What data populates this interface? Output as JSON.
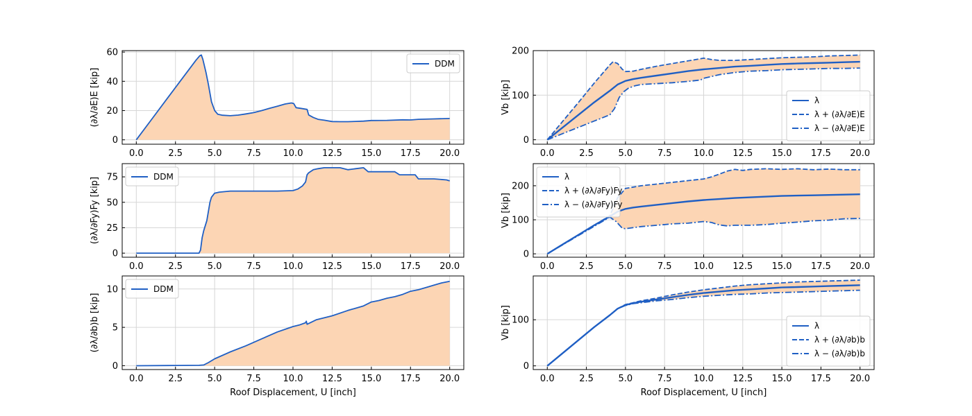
{
  "chart_data": [
    {
      "type": "area",
      "ylabel": "(∂λ/∂E)E [kip]",
      "xlabel": "",
      "xlim": [
        -0.9,
        20.9
      ],
      "ylim": [
        -3,
        61
      ],
      "xticks": [
        0.0,
        2.5,
        5.0,
        7.5,
        10.0,
        12.5,
        15.0,
        17.5,
        20.0
      ],
      "xtick_labels": [
        "0.0",
        "2.5",
        "5.0",
        "7.5",
        "10.0",
        "12.5",
        "15.0",
        "17.5",
        "20.0"
      ],
      "yticks": [
        0,
        20,
        40,
        60
      ],
      "ytick_labels": [
        "0",
        "20",
        "40",
        "60"
      ],
      "grid": true,
      "legend": {
        "position": "top-right",
        "entries": [
          "DDM"
        ]
      },
      "series": [
        {
          "name": "DDM",
          "x": [
            0,
            1,
            2,
            3,
            3.8,
            4.05,
            4.15,
            4.25,
            4.45,
            4.6,
            4.8,
            5.0,
            5.2,
            5.5,
            6.0,
            6.5,
            7.0,
            7.5,
            8.0,
            8.5,
            9.0,
            9.5,
            9.9,
            10.05,
            10.2,
            10.5,
            10.9,
            11.0,
            11.3,
            11.6,
            12.0,
            12.5,
            13.0,
            13.5,
            14.0,
            14.5,
            15.0,
            16.0,
            17.0,
            17.5,
            18.0,
            19.0,
            20.0
          ],
          "y": [
            0,
            14.3,
            28.6,
            42.9,
            54.3,
            57.5,
            58.0,
            55.0,
            46.0,
            38.0,
            26.0,
            20.0,
            17.5,
            16.8,
            16.5,
            16.9,
            17.7,
            18.6,
            20.0,
            21.5,
            23.0,
            24.5,
            25.2,
            24.8,
            22.0,
            21.5,
            20.8,
            17.0,
            15.3,
            14.0,
            13.4,
            12.5,
            12.4,
            12.4,
            12.6,
            12.8,
            13.2,
            13.3,
            13.7,
            13.6,
            14.0,
            14.3,
            14.6
          ]
        }
      ]
    },
    {
      "type": "area",
      "ylabel": "Vb [kip]",
      "xlabel": "",
      "xlim": [
        -0.9,
        20.9
      ],
      "ylim": [
        -10,
        200
      ],
      "xticks": [
        0.0,
        2.5,
        5.0,
        7.5,
        10.0,
        12.5,
        15.0,
        17.5,
        20.0
      ],
      "xtick_labels": [
        "0.0",
        "2.5",
        "5.0",
        "7.5",
        "10.0",
        "12.5",
        "15.0",
        "17.5",
        "20.0"
      ],
      "yticks": [
        0,
        100,
        200
      ],
      "ytick_labels": [
        "0",
        "100",
        "200"
      ],
      "grid": true,
      "legend": {
        "position": "bottom-right",
        "entries": [
          "λ",
          "λ + (∂λ/∂E)E",
          "λ − (∂λ/∂E)E"
        ]
      },
      "series": [
        {
          "name": "λ",
          "style": "solid",
          "x": [
            0,
            1,
            2,
            3,
            4,
            4.5,
            5.0,
            5.5,
            6,
            7,
            8,
            9,
            10,
            11,
            12,
            13,
            14,
            15,
            16,
            17,
            18,
            19,
            20
          ],
          "y": [
            0,
            28,
            56,
            84,
            110,
            124,
            132,
            136,
            139,
            144,
            149,
            154,
            158,
            161,
            164,
            166,
            168,
            170,
            171,
            172,
            173,
            174,
            175
          ]
        },
        {
          "name": "λ + (∂λ/∂E)E",
          "style": "dashed",
          "x": [
            0,
            1,
            2,
            3,
            4,
            4.2,
            4.5,
            4.8,
            5.0,
            5.5,
            6,
            7,
            8,
            9,
            9.5,
            10,
            10.5,
            11,
            12,
            13,
            14,
            15,
            16,
            17,
            18,
            19,
            20
          ],
          "y": [
            0,
            42,
            84,
            127,
            168,
            175,
            171,
            158,
            153,
            154,
            158,
            165,
            171,
            177,
            180,
            183,
            180,
            178,
            178,
            180,
            182,
            184,
            185,
            186,
            188,
            189,
            190
          ]
        },
        {
          "name": "λ − (∂λ/∂E)E",
          "style": "dashdot",
          "x": [
            0,
            1,
            2,
            3,
            4,
            4.3,
            4.6,
            4.9,
            5.2,
            5.6,
            6,
            7,
            8,
            9,
            9.8,
            10,
            10.5,
            11,
            12,
            13,
            14,
            15,
            16,
            17,
            18,
            19,
            20
          ],
          "y": [
            0,
            14,
            28,
            42,
            56,
            70,
            95,
            108,
            116,
            121,
            124,
            126,
            128,
            131,
            134,
            138,
            142,
            146,
            151,
            154,
            155,
            157,
            158,
            159,
            160,
            160,
            161
          ]
        }
      ]
    },
    {
      "type": "area",
      "ylabel": "(∂λ/∂Fy)Fy [kip]",
      "xlabel": "",
      "xlim": [
        -0.9,
        20.9
      ],
      "ylim": [
        -4,
        88
      ],
      "xticks": [
        0.0,
        2.5,
        5.0,
        7.5,
        10.0,
        12.5,
        15.0,
        17.5,
        20.0
      ],
      "xtick_labels": [
        "0.0",
        "2.5",
        "5.0",
        "7.5",
        "10.0",
        "12.5",
        "15.0",
        "17.5",
        "20.0"
      ],
      "yticks": [
        0,
        25,
        50,
        75
      ],
      "ytick_labels": [
        "0",
        "25",
        "50",
        "75"
      ],
      "grid": true,
      "legend": {
        "position": "top-left",
        "entries": [
          "DDM"
        ]
      },
      "series": [
        {
          "name": "DDM",
          "x": [
            0,
            4.0,
            4.1,
            4.2,
            4.3,
            4.5,
            4.7,
            4.8,
            5.0,
            5.3,
            6.0,
            7.0,
            8.0,
            9.0,
            10.0,
            10.3,
            10.6,
            10.8,
            10.9,
            11.0,
            11.3,
            11.6,
            12.0,
            12.5,
            13.0,
            13.5,
            14.0,
            14.5,
            14.8,
            15.5,
            16.0,
            16.5,
            16.8,
            17.0,
            17.5,
            17.8,
            18.0,
            19.0,
            19.8,
            20.0
          ],
          "y": [
            0,
            0,
            3,
            15,
            22,
            32,
            50,
            55,
            59,
            60,
            61,
            61,
            61,
            61,
            61.5,
            63,
            66,
            70,
            77,
            79,
            82,
            83,
            84,
            84,
            84,
            82,
            83,
            84,
            80,
            80,
            80,
            80,
            77,
            77,
            77,
            77,
            73,
            73,
            72,
            71
          ]
        }
      ]
    },
    {
      "type": "area",
      "ylabel": "Vb [kip]",
      "xlabel": "",
      "xlim": [
        -0.9,
        20.9
      ],
      "ylim": [
        -10,
        265
      ],
      "xticks": [
        0.0,
        2.5,
        5.0,
        7.5,
        10.0,
        12.5,
        15.0,
        17.5,
        20.0
      ],
      "xtick_labels": [
        "0.0",
        "2.5",
        "5.0",
        "7.5",
        "10.0",
        "12.5",
        "15.0",
        "17.5",
        "20.0"
      ],
      "yticks": [
        0,
        100,
        200
      ],
      "ytick_labels": [
        "0",
        "100",
        "200"
      ],
      "grid": true,
      "legend": {
        "position": "top-left",
        "entries": [
          "λ",
          "λ + (∂λ/∂Fy)Fy",
          "λ − (∂λ/∂Fy)Fy"
        ]
      },
      "series": [
        {
          "name": "λ",
          "style": "solid",
          "x": [
            0,
            1,
            2,
            3,
            4,
            4.5,
            5.0,
            5.5,
            6,
            7,
            8,
            9,
            10,
            11,
            12,
            13,
            14,
            15,
            16,
            17,
            18,
            19,
            20
          ],
          "y": [
            0,
            28,
            56,
            84,
            110,
            124,
            132,
            136,
            139,
            144,
            149,
            154,
            158,
            161,
            164,
            166,
            168,
            170,
            171,
            172,
            173,
            174,
            175
          ]
        },
        {
          "name": "λ + (∂λ/∂Fy)Fy",
          "style": "dashed",
          "x": [
            0,
            4,
            4.5,
            5.0,
            6,
            7,
            8,
            9,
            10,
            10.5,
            11,
            11.5,
            12,
            12.5,
            13,
            14,
            15,
            16,
            17,
            18,
            19,
            20
          ],
          "y": [
            0,
            112,
            165,
            192,
            200,
            205,
            210,
            215,
            220,
            226,
            234,
            243,
            248,
            245,
            248,
            250,
            248,
            250,
            247,
            249,
            247,
            247
          ]
        },
        {
          "name": "λ − (∂λ/∂Fy)Fy",
          "style": "dashdot",
          "x": [
            0,
            4,
            4.4,
            4.8,
            5.0,
            6,
            7,
            8,
            9,
            10,
            10.5,
            11,
            11.5,
            12,
            13,
            14,
            15,
            16,
            17,
            18,
            19,
            20
          ],
          "y": [
            0,
            108,
            95,
            75,
            74,
            80,
            84,
            88,
            90,
            95,
            92,
            85,
            82,
            84,
            84,
            86,
            90,
            93,
            97,
            99,
            103,
            104
          ]
        }
      ]
    },
    {
      "type": "area",
      "ylabel": "(∂λ/∂b)b [kip]",
      "xlabel": "Roof Displacement, U [inch]",
      "xlim": [
        -0.9,
        20.9
      ],
      "ylim": [
        -0.5,
        11.7
      ],
      "xticks": [
        0.0,
        2.5,
        5.0,
        7.5,
        10.0,
        12.5,
        15.0,
        17.5,
        20.0
      ],
      "xtick_labels": [
        "0.0",
        "2.5",
        "5.0",
        "7.5",
        "10.0",
        "12.5",
        "15.0",
        "17.5",
        "20.0"
      ],
      "yticks": [
        0,
        5,
        10
      ],
      "ytick_labels": [
        "0",
        "5",
        "10"
      ],
      "grid": true,
      "legend": {
        "position": "top-left",
        "entries": [
          "DDM"
        ]
      },
      "series": [
        {
          "name": "DDM",
          "x": [
            0,
            2,
            4.0,
            4.3,
            4.6,
            5.0,
            6.0,
            7.0,
            8.0,
            9.0,
            10.0,
            10.4,
            10.8,
            10.85,
            10.9,
            11.5,
            12.5,
            13.5,
            14.5,
            15.0,
            15.5,
            16.0,
            16.5,
            17.0,
            17.5,
            18.0,
            18.5,
            19.0,
            19.5,
            20.0
          ],
          "y": [
            0,
            0.02,
            0.05,
            0.1,
            0.4,
            0.9,
            1.8,
            2.6,
            3.5,
            4.4,
            5.1,
            5.3,
            5.6,
            5.8,
            5.4,
            6.0,
            6.5,
            7.2,
            7.8,
            8.3,
            8.5,
            8.8,
            9.0,
            9.3,
            9.7,
            9.9,
            10.2,
            10.5,
            10.8,
            11.0
          ]
        }
      ]
    },
    {
      "type": "area",
      "ylabel": "Vb [kip]",
      "xlabel": "Roof Displacement, U [inch]",
      "xlim": [
        -0.9,
        20.9
      ],
      "ylim": [
        -8,
        195
      ],
      "xticks": [
        0.0,
        2.5,
        5.0,
        7.5,
        10.0,
        12.5,
        15.0,
        17.5,
        20.0
      ],
      "xtick_labels": [
        "0.0",
        "2.5",
        "5.0",
        "7.5",
        "10.0",
        "12.5",
        "15.0",
        "17.5",
        "20.0"
      ],
      "yticks": [
        0,
        100
      ],
      "ytick_labels": [
        "0",
        "100"
      ],
      "grid": true,
      "legend": {
        "position": "bottom-right",
        "entries": [
          "λ",
          "λ + (∂λ/∂b)b",
          "λ − (∂λ/∂b)b"
        ]
      },
      "series": [
        {
          "name": "λ",
          "style": "solid",
          "x": [
            0,
            1,
            2,
            3,
            4,
            4.5,
            5.0,
            5.5,
            6,
            7,
            8,
            9,
            10,
            11,
            12,
            13,
            14,
            15,
            16,
            17,
            18,
            19,
            20
          ],
          "y": [
            0,
            28,
            56,
            84,
            110,
            124,
            132,
            136,
            139,
            144,
            149,
            154,
            158,
            161,
            164,
            166,
            168,
            170,
            171,
            172,
            173,
            174,
            175
          ]
        },
        {
          "name": "λ + (∂λ/∂b)b",
          "style": "dashed",
          "x": [
            0,
            1,
            2,
            3,
            4,
            4.5,
            5.0,
            5.5,
            6,
            7,
            8,
            9,
            10,
            11,
            12,
            13,
            14,
            15,
            16,
            17,
            18,
            19,
            20
          ],
          "y": [
            0,
            28,
            56,
            84,
            110,
            124,
            133,
            137,
            141,
            147,
            154,
            160,
            165,
            169,
            173,
            176,
            178,
            180,
            182,
            183,
            184,
            185,
            186
          ]
        },
        {
          "name": "λ − (∂λ/∂b)b",
          "style": "dashdot",
          "x": [
            0,
            1,
            2,
            3,
            4,
            4.5,
            5.0,
            5.5,
            6,
            7,
            8,
            9,
            10,
            11,
            12,
            13,
            14,
            15,
            16,
            17,
            18,
            19,
            20
          ],
          "y": [
            0,
            28,
            56,
            84,
            110,
            124,
            131,
            135,
            137,
            141,
            144,
            148,
            151,
            153,
            155,
            156,
            158,
            159,
            160,
            161,
            162,
            163,
            164
          ]
        }
      ]
    }
  ],
  "colors": {
    "line": "#1f5fc4",
    "fill": "#fcd5b4",
    "grid": "#d6d6d6",
    "legend_border": "#cccccc"
  }
}
